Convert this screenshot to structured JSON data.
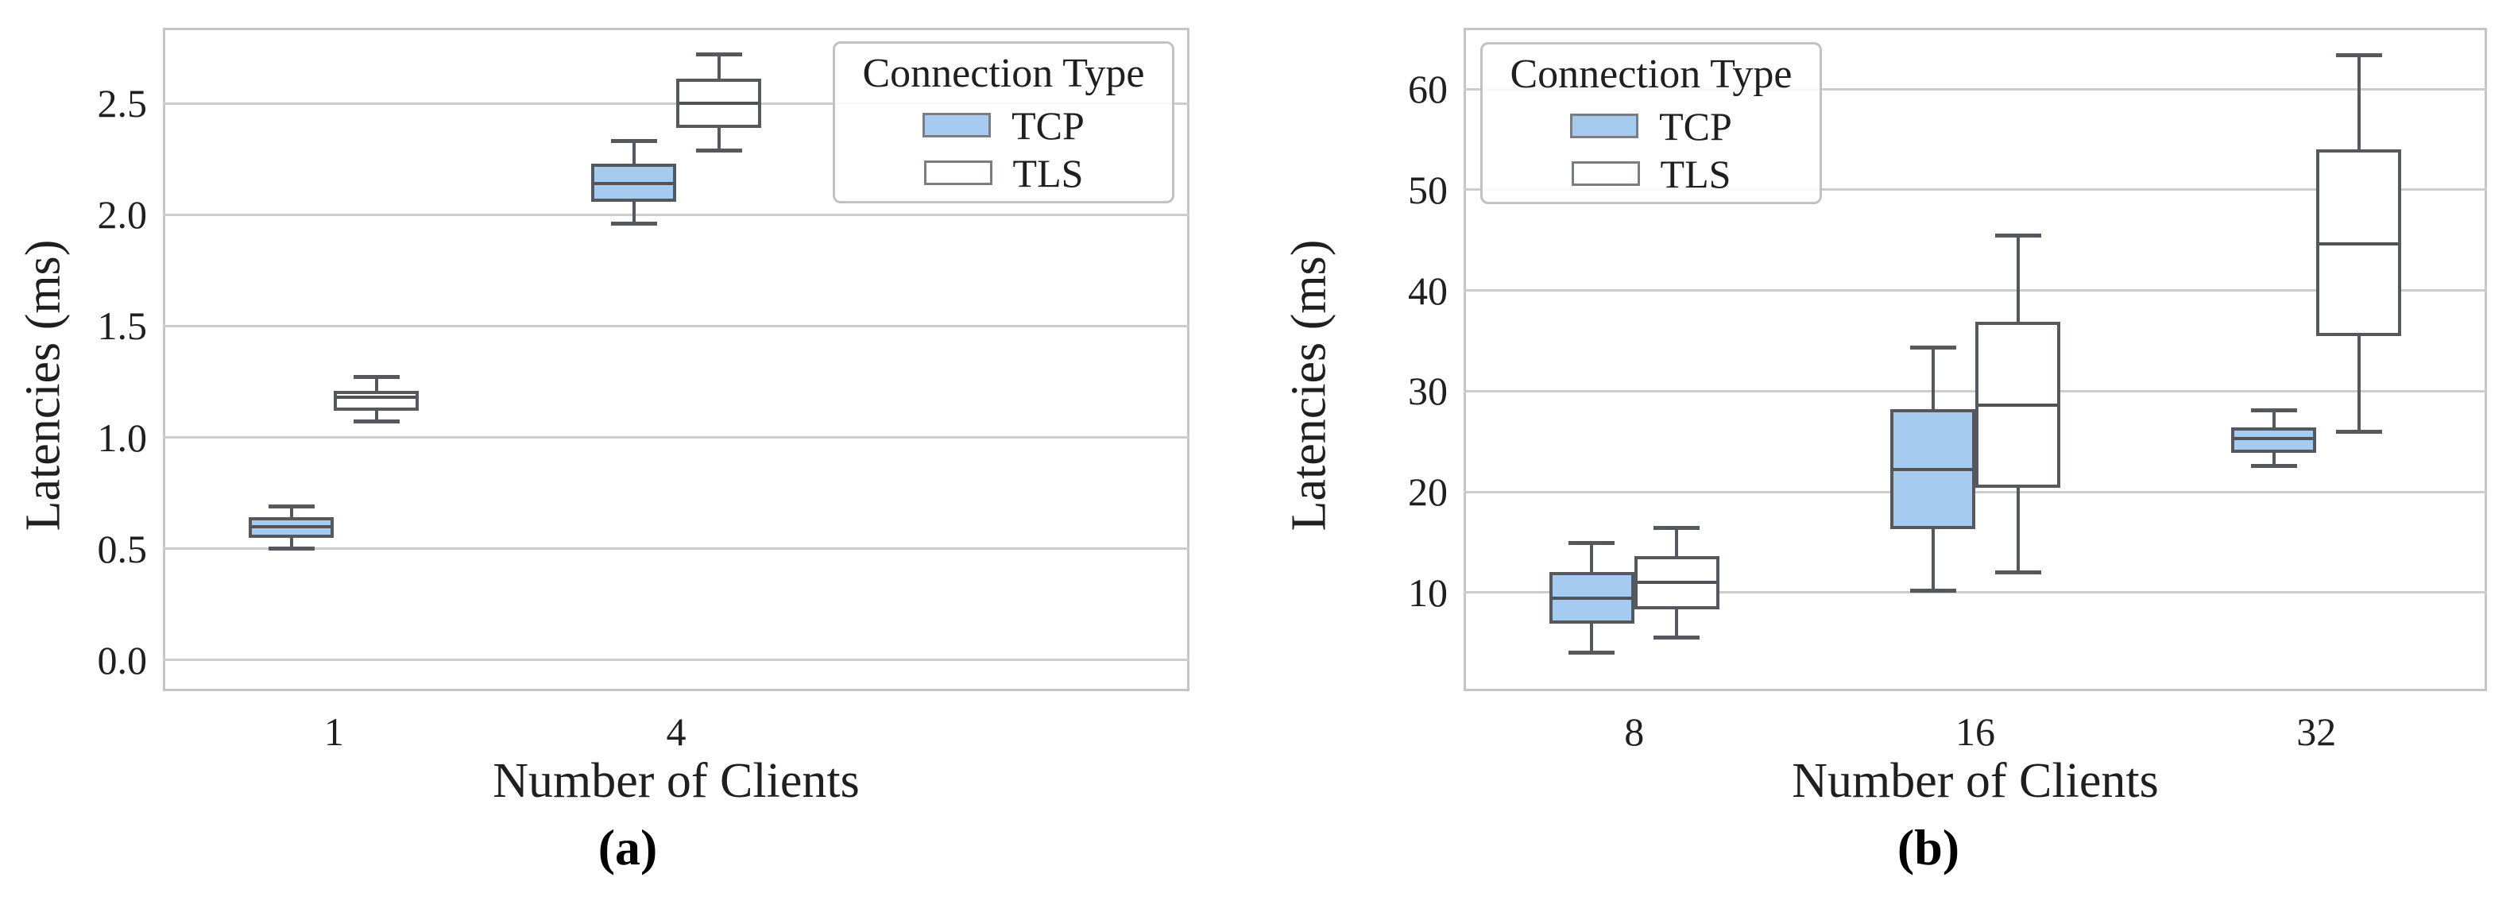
{
  "style": {
    "tcp_fill": "#A6CBF1",
    "tls_fill": "#FFFFFF",
    "box_edge": "#55585C",
    "median_color": "#4F5357",
    "grid_color": "#CDCDCD",
    "spine_color": "#C5C5C5",
    "text_color": "#1F1F1F"
  },
  "chart_data": [
    {
      "type": "box",
      "caption": "(a)",
      "xlabel": "Number of Clients",
      "ylabel": "Latencies (ms)",
      "grid": "horizontal",
      "legend": {
        "title": "Connection Type",
        "position": "top-right",
        "entries": [
          {
            "label": "TCP",
            "fill": "#A6CBF1"
          },
          {
            "label": "TLS",
            "fill": "#FFFFFF"
          }
        ]
      },
      "categories": [
        "1",
        "4"
      ],
      "category_positions": [
        0.1667,
        0.5
      ],
      "ylim": [
        -0.14,
        2.84
      ],
      "yticks": [
        0.0,
        0.5,
        1.0,
        1.5,
        2.0,
        2.5
      ],
      "ytick_labels": [
        "0.0",
        "0.5",
        "1.0",
        "1.5",
        "2.0",
        "2.5"
      ],
      "series": [
        {
          "name": "TCP",
          "boxes": [
            {
              "category": "1",
              "whislo": 0.5,
              "q1": 0.55,
              "med": 0.6,
              "q3": 0.64,
              "whishi": 0.69
            },
            {
              "category": "4",
              "whislo": 1.96,
              "q1": 2.06,
              "med": 2.14,
              "q3": 2.23,
              "whishi": 2.33
            }
          ]
        },
        {
          "name": "TLS",
          "boxes": [
            {
              "category": "1",
              "whislo": 1.07,
              "q1": 1.12,
              "med": 1.18,
              "q3": 1.21,
              "whishi": 1.27
            },
            {
              "category": "4",
              "whislo": 2.29,
              "q1": 2.39,
              "med": 2.5,
              "q3": 2.61,
              "whishi": 2.72
            }
          ]
        }
      ]
    },
    {
      "type": "box",
      "caption": "(b)",
      "xlabel": "Number of Clients",
      "ylabel": "Latencies (ms)",
      "grid": "horizontal",
      "legend": {
        "title": "Connection Type",
        "position": "top-left",
        "entries": [
          {
            "label": "TCP",
            "fill": "#A6CBF1"
          },
          {
            "label": "TLS",
            "fill": "#FFFFFF"
          }
        ]
      },
      "categories": [
        "8",
        "16",
        "32"
      ],
      "category_positions": [
        0.1667,
        0.5,
        0.8333
      ],
      "ylim": [
        0.2,
        66.1
      ],
      "yticks": [
        10,
        20,
        30,
        40,
        50,
        60
      ],
      "ytick_labels": [
        "10",
        "20",
        "30",
        "40",
        "50",
        "60"
      ],
      "series": [
        {
          "name": "TCP",
          "boxes": [
            {
              "category": "8",
              "whislo": 4.0,
              "q1": 6.9,
              "med": 9.4,
              "q3": 12.0,
              "whishi": 14.9
            },
            {
              "category": "16",
              "whislo": 10.2,
              "q1": 16.3,
              "med": 22.2,
              "q3": 28.2,
              "whishi": 34.3
            },
            {
              "category": "32",
              "whislo": 22.6,
              "q1": 23.9,
              "med": 25.3,
              "q3": 26.4,
              "whishi": 28.1
            }
          ]
        },
        {
          "name": "TLS",
          "boxes": [
            {
              "category": "8",
              "whislo": 5.5,
              "q1": 8.3,
              "med": 11.0,
              "q3": 13.6,
              "whishi": 16.4
            },
            {
              "category": "16",
              "whislo": 12.0,
              "q1": 20.4,
              "med": 28.6,
              "q3": 36.9,
              "whishi": 45.5
            },
            {
              "category": "32",
              "whislo": 26.0,
              "q1": 35.5,
              "med": 44.6,
              "q3": 54.0,
              "whishi": 63.4
            }
          ]
        }
      ]
    }
  ]
}
